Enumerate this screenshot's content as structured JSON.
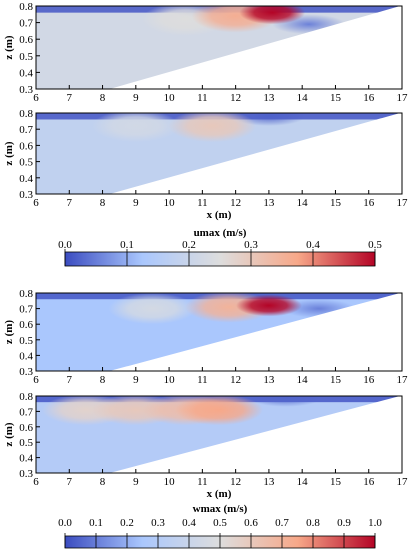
{
  "chart_data": [
    {
      "type": "heatmap",
      "panel": "u-top",
      "xlabel": "",
      "ylabel": "z (m)",
      "xlim": [
        6,
        17
      ],
      "ylim": [
        0.3,
        0.8
      ],
      "xticks": [
        "6",
        "7",
        "8",
        "9",
        "10",
        "11",
        "12",
        "13",
        "14",
        "15",
        "16",
        "17"
      ],
      "yticks": [
        "0.3",
        "0.4",
        "0.5",
        "0.6",
        "0.7",
        "0.8"
      ],
      "beach_line": [
        [
          6,
          0.17
        ],
        [
          17,
          0.8
        ]
      ],
      "field_background": 0.22,
      "hotspots": [
        {
          "x": 13.1,
          "z": 0.76,
          "value": 0.5
        },
        {
          "x": 12.0,
          "z": 0.74,
          "value": 0.36
        },
        {
          "x": 10.5,
          "z": 0.72,
          "value": 0.25
        }
      ],
      "low_zones": [
        {
          "x": 14.2,
          "z": 0.69,
          "value": 0.05
        },
        {
          "x": 11.0,
          "z": 0.79,
          "value": 0.02
        }
      ]
    },
    {
      "type": "heatmap",
      "panel": "u-bottom",
      "xlabel": "x (m)",
      "ylabel": "z (m)",
      "xlim": [
        6,
        17
      ],
      "ylim": [
        0.3,
        0.8
      ],
      "xticks": [
        "6",
        "7",
        "8",
        "9",
        "10",
        "11",
        "12",
        "13",
        "14",
        "15",
        "16",
        "17"
      ],
      "yticks": [
        "0.3",
        "0.4",
        "0.5",
        "0.6",
        "0.7",
        "0.8"
      ],
      "beach_line": [
        [
          6,
          0.17
        ],
        [
          17,
          0.8
        ]
      ],
      "field_background": 0.18,
      "hotspots": [
        {
          "x": 11.3,
          "z": 0.72,
          "value": 0.3
        },
        {
          "x": 9.0,
          "z": 0.72,
          "value": 0.22
        }
      ],
      "low_zones": [
        {
          "x": 13.0,
          "z": 0.78,
          "value": 0.02
        }
      ]
    },
    {
      "type": "colorbar",
      "panel": "u-colorbar",
      "label": "umax (m/s)",
      "range": [
        0.0,
        0.5
      ],
      "ticks": [
        "0.0",
        "0.1",
        "0.2",
        "0.3",
        "0.4",
        "0.5"
      ],
      "colormap": [
        "#3b4cc0",
        "#aac7fd",
        "#dddddd",
        "#f7a889",
        "#b40426"
      ]
    },
    {
      "type": "heatmap",
      "panel": "w-top",
      "xlabel": "",
      "ylabel": "z (m)",
      "xlim": [
        6,
        17
      ],
      "ylim": [
        0.3,
        0.8
      ],
      "xticks": [
        "6",
        "7",
        "8",
        "9",
        "10",
        "11",
        "12",
        "13",
        "14",
        "15",
        "16",
        "17"
      ],
      "yticks": [
        "0.3",
        "0.4",
        "0.5",
        "0.6",
        "0.7",
        "0.8"
      ],
      "beach_line": [
        [
          6,
          0.17
        ],
        [
          17,
          0.8
        ]
      ],
      "field_background": 0.25,
      "hotspots": [
        {
          "x": 13.0,
          "z": 0.72,
          "value": 1.0
        },
        {
          "x": 11.8,
          "z": 0.71,
          "value": 0.7
        },
        {
          "x": 9.5,
          "z": 0.7,
          "value": 0.45
        }
      ],
      "low_zones": [
        {
          "x": 14.5,
          "z": 0.7,
          "value": 0.1
        }
      ]
    },
    {
      "type": "heatmap",
      "panel": "w-bottom",
      "xlabel": "x (m)",
      "ylabel": "z (m)",
      "xlim": [
        6,
        17
      ],
      "ylim": [
        0.3,
        0.8
      ],
      "xticks": [
        "6",
        "7",
        "8",
        "9",
        "10",
        "11",
        "12",
        "13",
        "14",
        "15",
        "16",
        "17"
      ],
      "yticks": [
        "0.3",
        "0.4",
        "0.5",
        "0.6",
        "0.7",
        "0.8"
      ],
      "beach_line": [
        [
          6,
          0.17
        ],
        [
          17,
          0.8
        ]
      ],
      "field_background": 0.3,
      "hotspots": [
        {
          "x": 11.5,
          "z": 0.71,
          "value": 0.75
        },
        {
          "x": 10.5,
          "z": 0.71,
          "value": 0.65
        },
        {
          "x": 9.0,
          "z": 0.71,
          "value": 0.6
        },
        {
          "x": 7.5,
          "z": 0.71,
          "value": 0.55
        }
      ],
      "low_zones": [
        {
          "x": 13.5,
          "z": 0.79,
          "value": 0.05
        }
      ]
    },
    {
      "type": "colorbar",
      "panel": "w-colorbar",
      "label": "wmax (m/s)",
      "range": [
        0.0,
        1.0
      ],
      "ticks": [
        "0.0",
        "0.1",
        "0.2",
        "0.3",
        "0.4",
        "0.5",
        "0.6",
        "0.7",
        "0.8",
        "0.9",
        "1.0"
      ],
      "colormap": [
        "#3b4cc0",
        "#aac7fd",
        "#dddddd",
        "#f7a889",
        "#b40426"
      ]
    }
  ]
}
